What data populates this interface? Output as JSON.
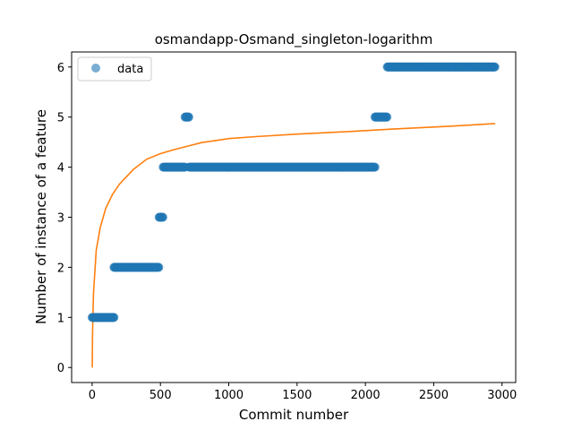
{
  "chart_data": {
    "type": "scatter",
    "title": "osmandapp-Osmand_singleton-logarithm",
    "xlabel": "Commit number",
    "ylabel": "Number of instance of a feature",
    "xlim": [
      -150,
      3100
    ],
    "ylim": [
      -0.3,
      6.3
    ],
    "xticks": [
      0,
      500,
      1000,
      1500,
      2000,
      2500,
      3000
    ],
    "yticks": [
      0,
      1,
      2,
      3,
      4,
      5,
      6
    ],
    "grid": false,
    "legend": {
      "placement": "top-left",
      "entries": [
        "data"
      ]
    },
    "colors": {
      "data": "#1f77b4",
      "fit": "#ff7f0e"
    },
    "series": [
      {
        "name": "data",
        "kind": "scatter",
        "segments": [
          {
            "x_start": 0,
            "x_end": 160,
            "y": 1
          },
          {
            "x_start": 160,
            "x_end": 490,
            "y": 2
          },
          {
            "x_start": 490,
            "x_end": 520,
            "y": 3
          },
          {
            "x_start": 520,
            "x_end": 680,
            "y": 4
          },
          {
            "x_start": 680,
            "x_end": 710,
            "y": 5
          },
          {
            "x_start": 710,
            "x_end": 2070,
            "y": 4
          },
          {
            "x_start": 2070,
            "x_end": 2160,
            "y": 5
          },
          {
            "x_start": 2160,
            "x_end": 2950,
            "y": 6
          }
        ]
      },
      {
        "kind": "line",
        "x": [
          1,
          3,
          10,
          30,
          60,
          100,
          150,
          200,
          300,
          400,
          500,
          600,
          700,
          800,
          1000,
          1200,
          1500,
          1800,
          2000,
          2200,
          2500,
          2700,
          2950
        ],
        "y": [
          0.0,
          0.67,
          1.48,
          2.34,
          2.8,
          3.18,
          3.46,
          3.66,
          3.95,
          4.16,
          4.27,
          4.35,
          4.42,
          4.49,
          4.57,
          4.61,
          4.66,
          4.7,
          4.73,
          4.76,
          4.8,
          4.83,
          4.87
        ]
      }
    ]
  }
}
